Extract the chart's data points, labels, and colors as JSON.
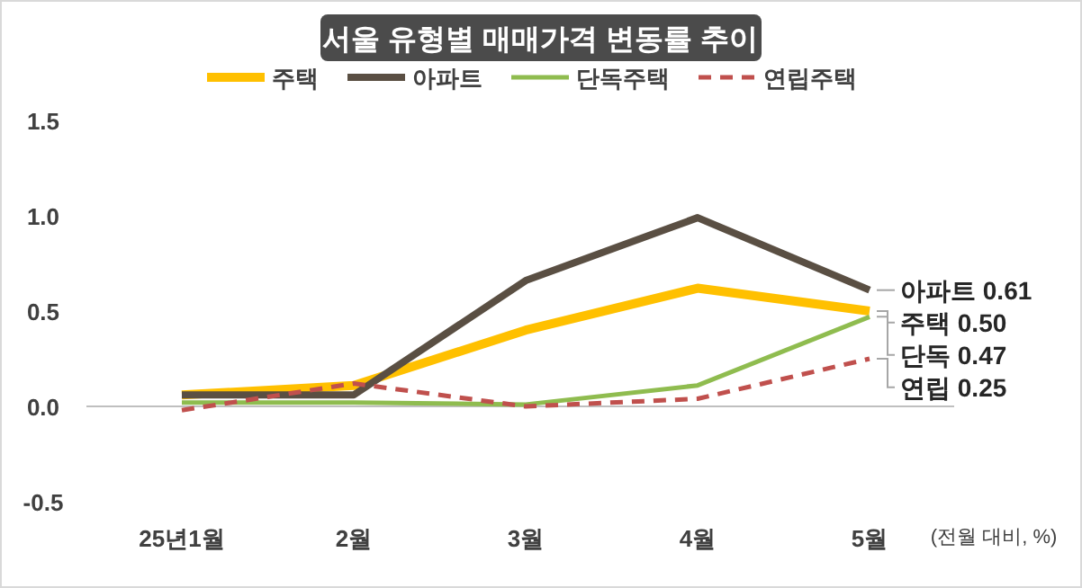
{
  "chart_data": {
    "type": "line",
    "title": "서울 유형별 매매가격 변동률 추이",
    "categories": [
      "25년1월",
      "2월",
      "3월",
      "4월",
      "5월"
    ],
    "series": [
      {
        "name": "주택",
        "color": "#ffc000",
        "values": [
          0.06,
          0.11,
          0.4,
          0.62,
          0.5
        ]
      },
      {
        "name": "아파트",
        "color": "#5a4f43",
        "values": [
          0.06,
          0.06,
          0.66,
          0.99,
          0.61
        ]
      },
      {
        "name": "단독주택",
        "color": "#8fbc4f",
        "values": [
          0.02,
          0.02,
          0.01,
          0.11,
          0.47
        ]
      },
      {
        "name": "연립주택",
        "color": "#c0504d",
        "values": [
          -0.02,
          0.12,
          0.0,
          0.04,
          0.25
        ],
        "line_style": "dashed"
      }
    ],
    "ylim": [
      -0.5,
      1.5
    ],
    "yticks": [
      -0.5,
      {
        "value": 0,
        "label": "0.0"
      },
      0.5,
      {
        "value": 1,
        "label": "1.0"
      },
      1.5
    ],
    "legend": "top",
    "marker": "none",
    "annotations": [
      {
        "text": "아파트 0.61",
        "x": "5월",
        "y": 0.61
      },
      {
        "text": "주택 0.50",
        "x": "5월",
        "y": 0.5
      },
      {
        "text": "단독 0.47",
        "x": "5월",
        "y": 0.47
      },
      {
        "text": "연립 0.25",
        "x": "5월",
        "y": 0.25
      },
      "(전월 대비, %)"
    ]
  }
}
